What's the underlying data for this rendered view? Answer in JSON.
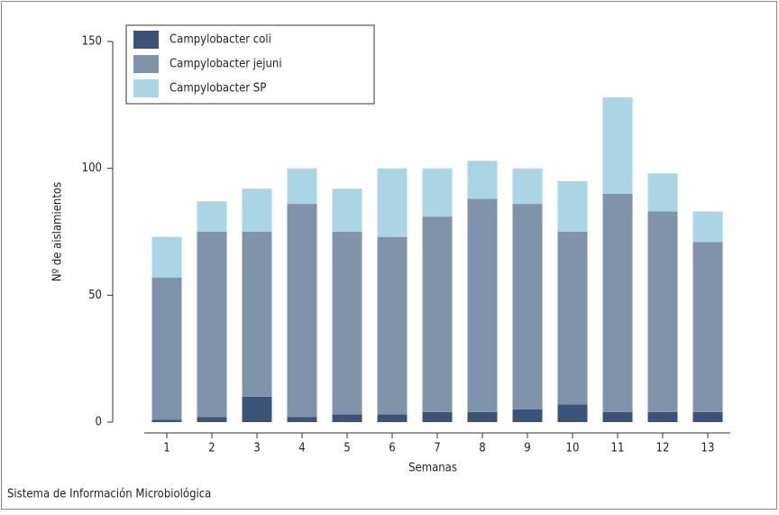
{
  "chart_data": {
    "type": "stacked_bar",
    "x_label": "Semanas",
    "y_label": "Nº de aislamientos",
    "source": "Sistema de Información Microbiológica",
    "categories": [
      "1",
      "2",
      "3",
      "4",
      "5",
      "6",
      "7",
      "8",
      "9",
      "10",
      "11",
      "12",
      "13"
    ],
    "series": [
      {
        "name": "Campylobacter coli",
        "color": "#3a5378",
        "values": [
          1,
          2,
          10,
          2,
          3,
          3,
          4,
          4,
          5,
          7,
          4,
          4,
          4
        ]
      },
      {
        "name": "Campylobacter jejuni",
        "color": "#7f93aa",
        "values": [
          56,
          73,
          65,
          84,
          72,
          70,
          77,
          84,
          81,
          68,
          86,
          79,
          67
        ]
      },
      {
        "name": "Campylobacter SP",
        "color": "#a9d5e5",
        "values": [
          16,
          12,
          17,
          14,
          17,
          27,
          19,
          15,
          14,
          20,
          38,
          15,
          12
        ]
      }
    ],
    "ylim": [
      0,
      150
    ],
    "yticks": [
      0,
      50,
      100,
      150
    ],
    "legend": "top-left"
  }
}
